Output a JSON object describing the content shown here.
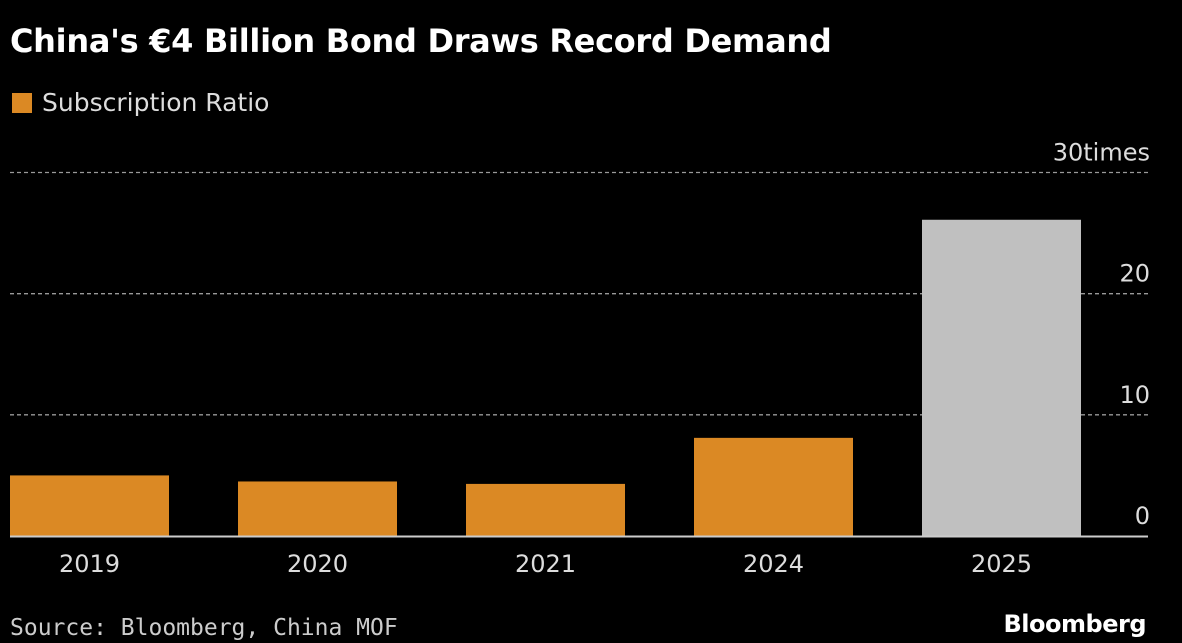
{
  "colors": {
    "background": "#000000",
    "primary": "#DB8924",
    "highlight": "#C0C0C0",
    "text": "#FFFFFF"
  },
  "chart_data": {
    "type": "bar",
    "title": "China's €4 Billion Bond Draws Record Demand",
    "legend": {
      "entries": [
        "Subscription Ratio"
      ],
      "placement": "top-left"
    },
    "categories": [
      "2019",
      "2020",
      "2021",
      "2024",
      "2025"
    ],
    "series": [
      {
        "name": "Subscription Ratio",
        "values": [
          5.0,
          4.5,
          4.3,
          8.1,
          26.1
        ]
      }
    ],
    "highlighted_category": "2025",
    "ylim": [
      0,
      30
    ],
    "yticks": [
      0,
      10,
      20,
      30
    ],
    "ytick_labels": [
      "0",
      "10",
      "20",
      "30times"
    ],
    "y_axis_side": "right",
    "grid": "horizontal dashed"
  },
  "footer": {
    "source": "Source: Bloomberg, China MOF",
    "logo": "Bloomberg"
  }
}
